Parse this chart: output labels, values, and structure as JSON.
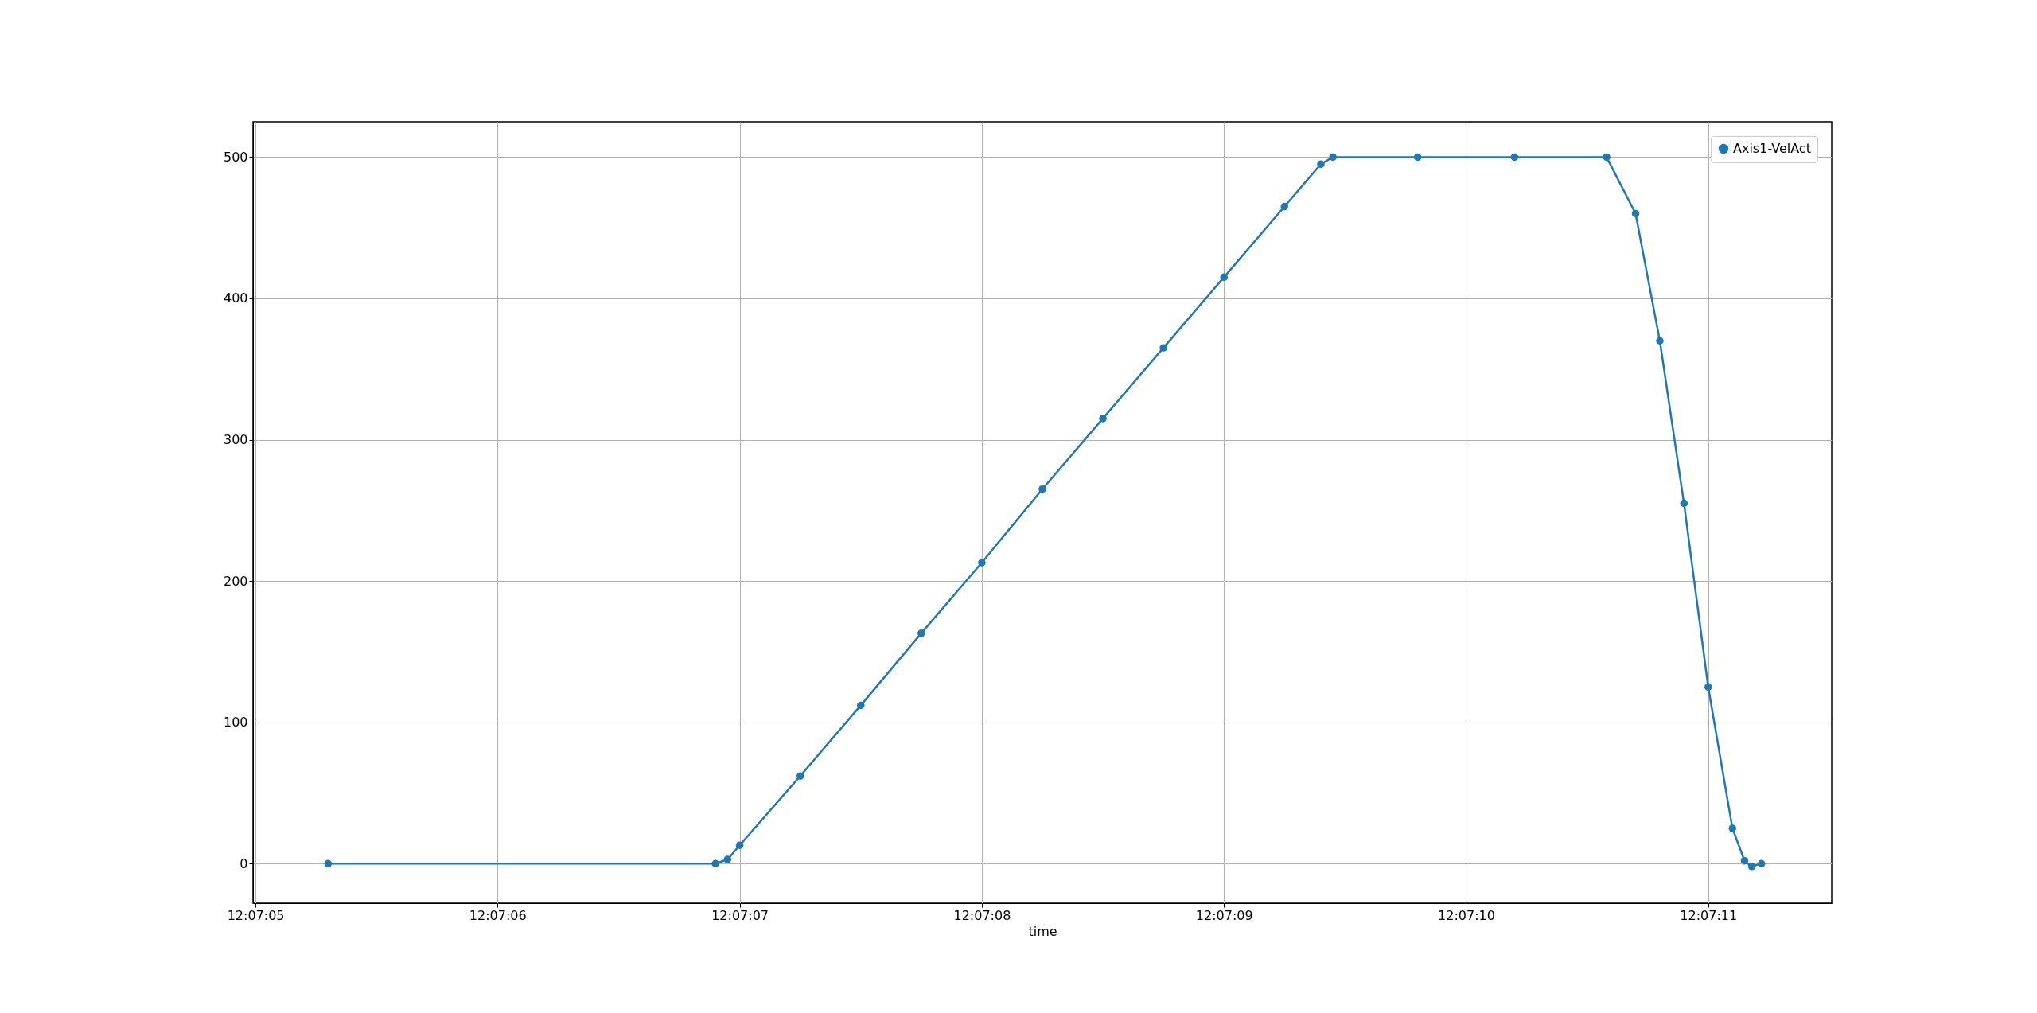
{
  "chart_data": {
    "type": "line",
    "xlabel": "time",
    "x": [
      12.1181389,
      12.1185833,
      12.1185972,
      12.1186111,
      12.1186806,
      12.11875,
      12.1188194,
      12.1188889,
      12.1189583,
      12.1190278,
      12.1190972,
      12.1191667,
      12.1192361,
      12.1192778,
      12.1192917,
      12.1193889,
      12.1195,
      12.1196056,
      12.1196389,
      12.1196667,
      12.1196944,
      12.1197222,
      12.11975,
      12.1197639,
      12.1197722,
      12.1197833
    ],
    "series": [
      {
        "name": "Axis1-VelAct",
        "color": "#1f77b4",
        "values": [
          0,
          0,
          3,
          13,
          62,
          112,
          163,
          213,
          265,
          315,
          365,
          415,
          465,
          495,
          500,
          500,
          500,
          500,
          460,
          370,
          255,
          125,
          25,
          2,
          -2,
          0
        ]
      }
    ],
    "xlim": [
      12.1180528,
      12.1198639
    ],
    "xticks": [
      {
        "value": 12.1180556,
        "label": "12:07:05"
      },
      {
        "value": 12.1183333,
        "label": "12:07:06"
      },
      {
        "value": 12.1186111,
        "label": "12:07:07"
      },
      {
        "value": 12.1188889,
        "label": "12:07:08"
      },
      {
        "value": 12.1191667,
        "label": "12:07:09"
      },
      {
        "value": 12.1194444,
        "label": "12:07:10"
      },
      {
        "value": 12.1197222,
        "label": "12:07:11"
      }
    ],
    "ylim": [
      -28,
      525
    ],
    "yticks": [
      0,
      100,
      200,
      300,
      400,
      500
    ],
    "grid": true,
    "legend": "top right",
    "marker": "circle",
    "line_style": "solid"
  }
}
